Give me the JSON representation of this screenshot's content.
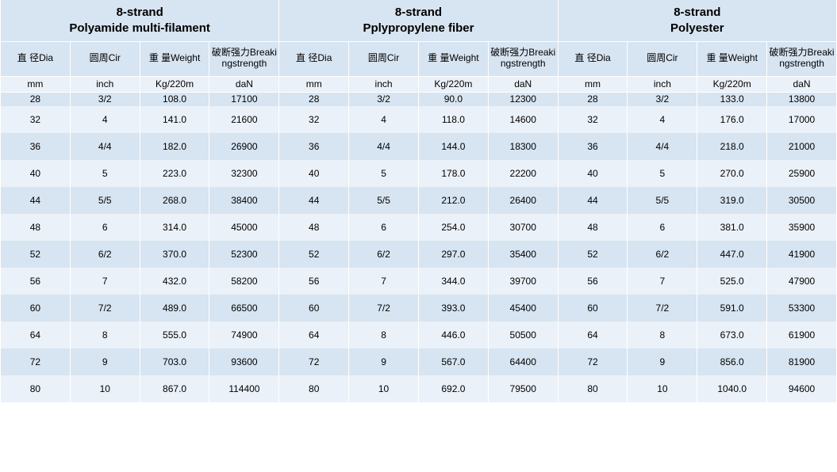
{
  "colors": {
    "band_dark": "#d7e4f1",
    "band_light": "#ebf1f8",
    "border": "#ffffff",
    "text": "#000000"
  },
  "sections": [
    {
      "title_line1": "8-strand",
      "title_line2": "Polyamide multi-filament"
    },
    {
      "title_line1": "8-strand",
      "title_line2": "Pplypropylene fiber"
    },
    {
      "title_line1": "8-strand",
      "title_line2": "Polyester"
    }
  ],
  "columns": [
    {
      "label": "直 径Dia",
      "unit": "mm"
    },
    {
      "label": "圆周Cir",
      "unit": "inch"
    },
    {
      "label": "重 量Weight",
      "unit": "Kg/220m"
    },
    {
      "label": "破断强力Breakingstrength",
      "unit": "daN"
    }
  ],
  "rows": [
    {
      "dia": "28",
      "cir": "3/2",
      "w1": "108.0",
      "b1": "17100",
      "w2": "90.0",
      "b2": "12300",
      "w3": "133.0",
      "b3": "13800"
    },
    {
      "dia": "32",
      "cir": "4",
      "w1": "141.0",
      "b1": "21600",
      "w2": "118.0",
      "b2": "14600",
      "w3": "176.0",
      "b3": "17000"
    },
    {
      "dia": "36",
      "cir": "4/4",
      "w1": "182.0",
      "b1": "26900",
      "w2": "144.0",
      "b2": "18300",
      "w3": "218.0",
      "b3": "21000"
    },
    {
      "dia": "40",
      "cir": "5",
      "w1": "223.0",
      "b1": "32300",
      "w2": "178.0",
      "b2": "22200",
      "w3": "270.0",
      "b3": "25900"
    },
    {
      "dia": "44",
      "cir": "5/5",
      "w1": "268.0",
      "b1": "38400",
      "w2": "212.0",
      "b2": "26400",
      "w3": "319.0",
      "b3": "30500"
    },
    {
      "dia": "48",
      "cir": "6",
      "w1": "314.0",
      "b1": "45000",
      "w2": "254.0",
      "b2": "30700",
      "w3": "381.0",
      "b3": "35900"
    },
    {
      "dia": "52",
      "cir": "6/2",
      "w1": "370.0",
      "b1": "52300",
      "w2": "297.0",
      "b2": "35400",
      "w3": "447.0",
      "b3": "41900"
    },
    {
      "dia": "56",
      "cir": "7",
      "w1": "432.0",
      "b1": "58200",
      "w2": "344.0",
      "b2": "39700",
      "w3": "525.0",
      "b3": "47900"
    },
    {
      "dia": "60",
      "cir": "7/2",
      "w1": "489.0",
      "b1": "66500",
      "w2": "393.0",
      "b2": "45400",
      "w3": "591.0",
      "b3": "53300"
    },
    {
      "dia": "64",
      "cir": "8",
      "w1": "555.0",
      "b1": "74900",
      "w2": "446.0",
      "b2": "50500",
      "w3": "673.0",
      "b3": "61900"
    },
    {
      "dia": "72",
      "cir": "9",
      "w1": "703.0",
      "b1": "93600",
      "w2": "567.0",
      "b2": "64400",
      "w3": "856.0",
      "b3": "81900"
    },
    {
      "dia": "80",
      "cir": "10",
      "w1": "867.0",
      "b1": "114400",
      "w2": "692.0",
      "b2": "79500",
      "w3": "1040.0",
      "b3": "94600"
    }
  ]
}
